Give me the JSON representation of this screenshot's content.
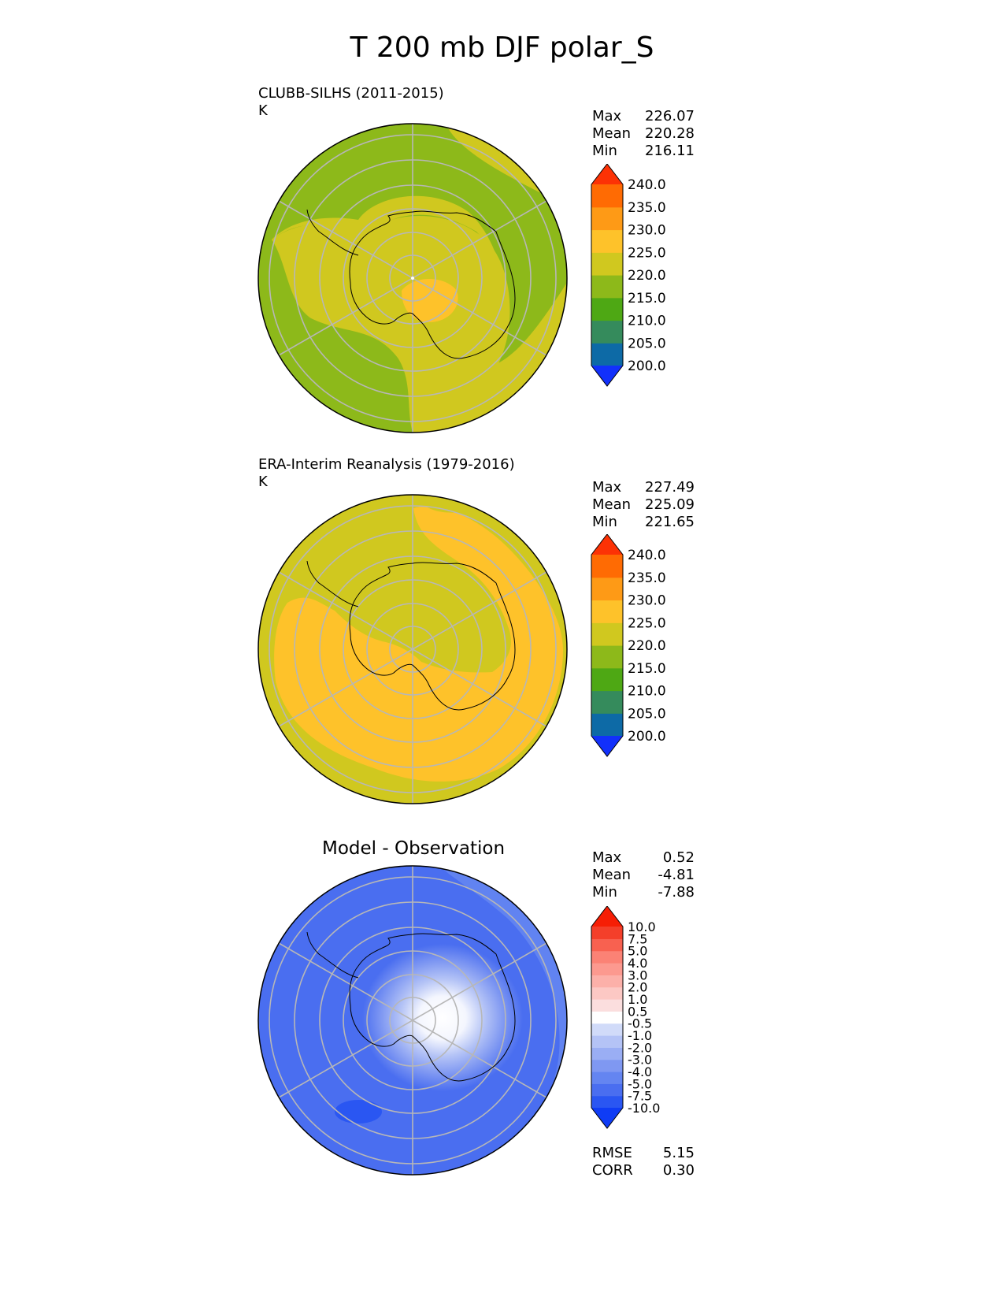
{
  "figure": {
    "title": "T 200 mb DJF polar_S"
  },
  "panels": [
    {
      "id": "model",
      "name": "CLUBB-SILHS (2011-2015)",
      "units": "K",
      "stats": [
        {
          "label": "Max",
          "value": "226.07"
        },
        {
          "label": "Mean",
          "value": "220.28"
        },
        {
          "label": "Min",
          "value": "216.11"
        }
      ]
    },
    {
      "id": "obs",
      "name": "ERA-Interim Reanalysis (1979-2016)",
      "units": "K",
      "stats": [
        {
          "label": "Max",
          "value": "227.49"
        },
        {
          "label": "Mean",
          "value": "225.09"
        },
        {
          "label": "Min",
          "value": "221.65"
        }
      ]
    },
    {
      "id": "diff",
      "title": "Model - Observation",
      "stats": [
        {
          "label": "Max",
          "value": "0.52"
        },
        {
          "label": "Mean",
          "value": "-4.81"
        },
        {
          "label": "Min",
          "value": "-7.88"
        }
      ],
      "metrics": [
        {
          "label": "RMSE",
          "value": "5.15"
        },
        {
          "label": "CORR",
          "value": "0.30"
        }
      ]
    }
  ],
  "chart_data": [
    {
      "type": "heatmap",
      "projection": "south polar stereographic",
      "variable": "T",
      "level": "200 mb",
      "season": "DJF",
      "colorbar": {
        "ticks": [
          "240.0",
          "235.0",
          "230.0",
          "225.0",
          "220.0",
          "215.0",
          "210.0",
          "205.0",
          "200.0"
        ],
        "levels": [
          200,
          205,
          210,
          215,
          220,
          225,
          230,
          235,
          240
        ],
        "colors": [
          "#1230fb",
          "#0d6aa6",
          "#358b5c",
          "#4ea814",
          "#8db91a",
          "#d0c81f",
          "#fec22a",
          "#fe9a16",
          "#ff6b03",
          "#fc3205"
        ],
        "extend": "both"
      },
      "field_summary": {
        "max": 226.07,
        "mean": 220.28,
        "min": 216.11
      }
    },
    {
      "type": "heatmap",
      "projection": "south polar stereographic",
      "variable": "T",
      "level": "200 mb",
      "season": "DJF",
      "colorbar": {
        "ticks": [
          "240.0",
          "235.0",
          "230.0",
          "225.0",
          "220.0",
          "215.0",
          "210.0",
          "205.0",
          "200.0"
        ],
        "levels": [
          200,
          205,
          210,
          215,
          220,
          225,
          230,
          235,
          240
        ],
        "colors": [
          "#1230fb",
          "#0d6aa6",
          "#358b5c",
          "#4ea814",
          "#8db91a",
          "#d0c81f",
          "#fec22a",
          "#fe9a16",
          "#ff6b03",
          "#fc3205"
        ],
        "extend": "both"
      },
      "field_summary": {
        "max": 227.49,
        "mean": 225.09,
        "min": 221.65
      }
    },
    {
      "type": "heatmap",
      "projection": "south polar stereographic",
      "variable": "T difference",
      "colorbar": {
        "ticks": [
          "10.0",
          "7.5",
          "5.0",
          "4.0",
          "3.0",
          "2.0",
          "1.0",
          "0.5",
          "-0.5",
          "-1.0",
          "-2.0",
          "-3.0",
          "-4.0",
          "-5.0",
          "-7.5",
          "-10.0"
        ],
        "levels": [
          -10,
          -7.5,
          -5,
          -4,
          -3,
          -2,
          -1,
          -0.5,
          0.5,
          1,
          2,
          3,
          4,
          5,
          7.5,
          10
        ],
        "colors": [
          "#0f3cf5",
          "#2a56f2",
          "#4a6ef0",
          "#6485f1",
          "#7f98f2",
          "#9aaef4",
          "#b4c3f6",
          "#d1dbf9",
          "#ffffff",
          "#fbdede",
          "#fcc8c4",
          "#fcb0a9",
          "#fc998f",
          "#fb8275",
          "#f86150",
          "#f43f2a",
          "#f61e05"
        ],
        "extend": "both"
      },
      "field_summary": {
        "max": 0.52,
        "mean": -4.81,
        "min": -7.88,
        "rmse": 5.15,
        "corr": 0.3
      }
    }
  ]
}
